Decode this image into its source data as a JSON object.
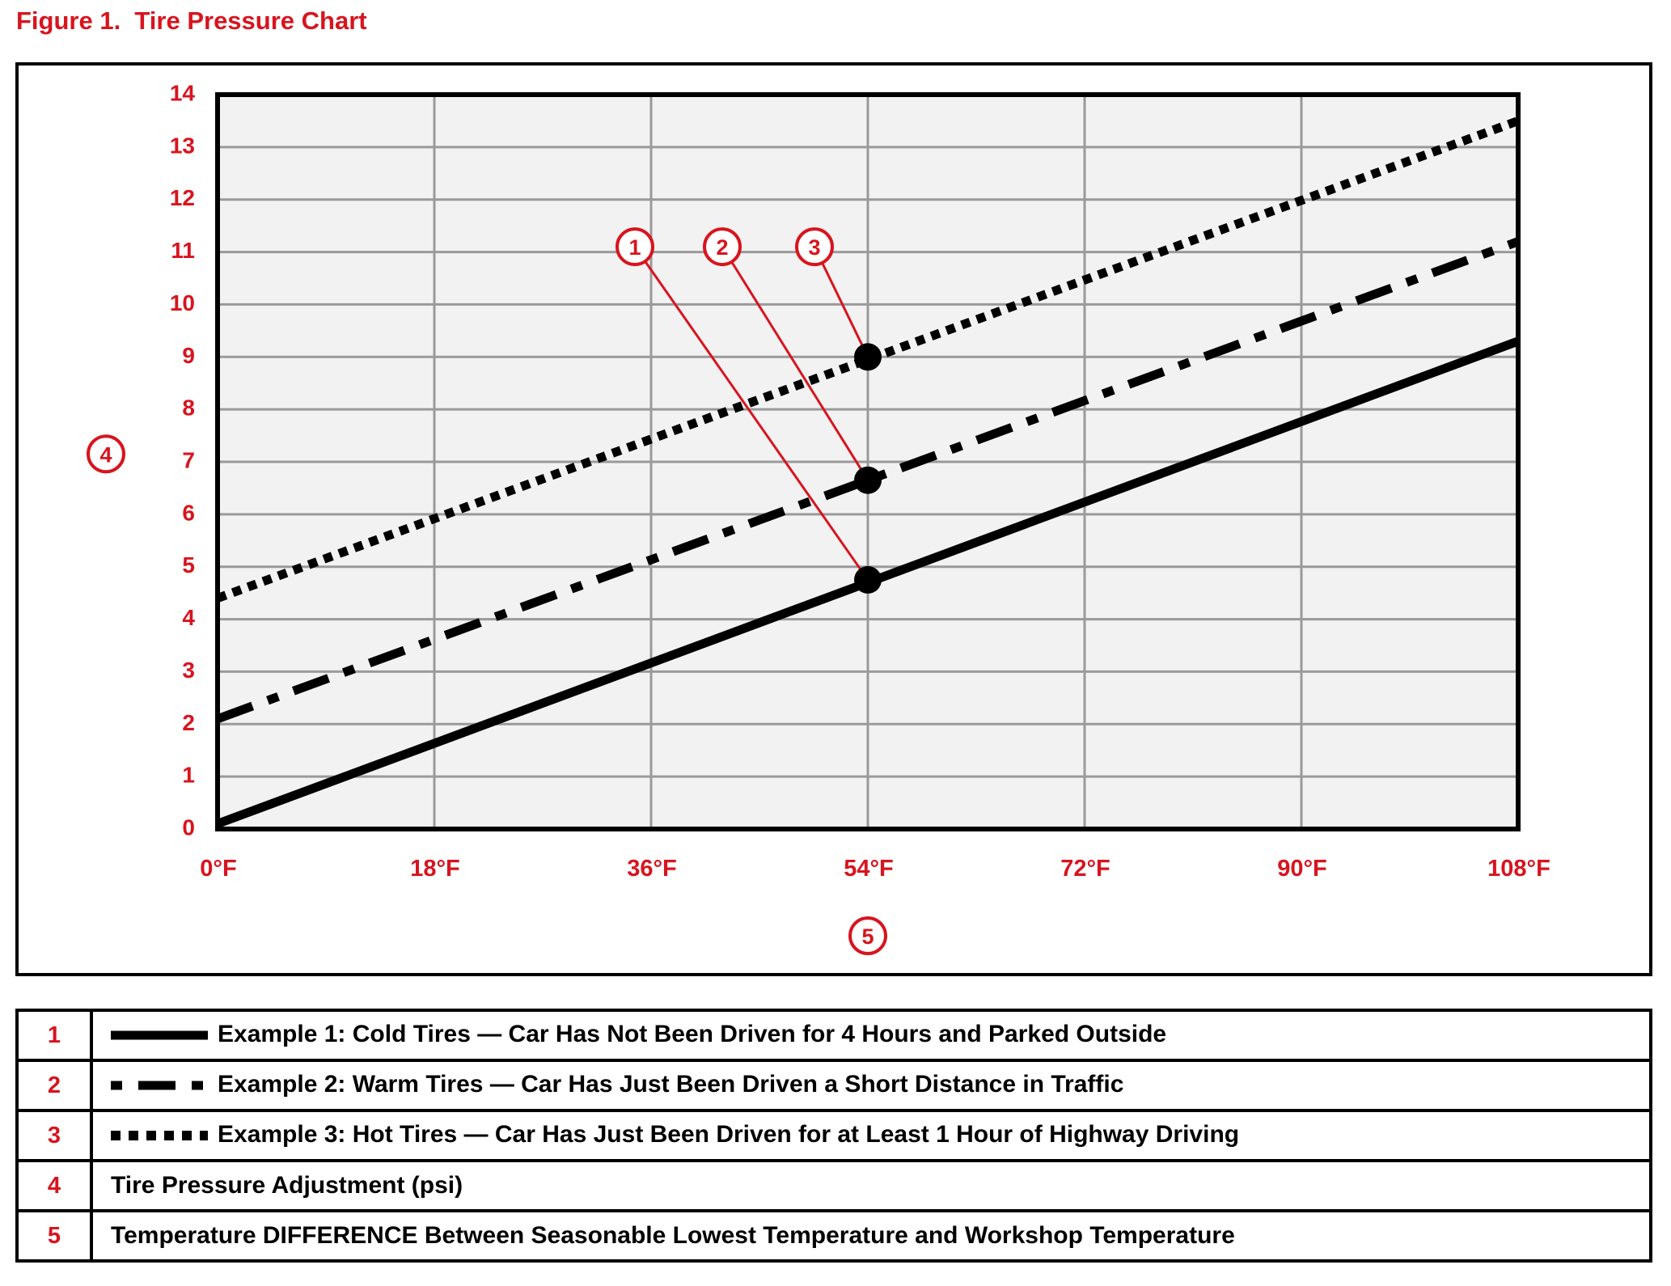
{
  "figure_title": "Figure 1.  Tire Pressure Chart",
  "colors": {
    "accent": "#d8141e",
    "line": "#000000",
    "plot_bg": "#f2f2f2",
    "grid": "#9a9a9a"
  },
  "chart_data": {
    "type": "line",
    "title": "Tire Pressure Chart",
    "x": [
      0,
      18,
      36,
      54,
      72,
      90,
      108
    ],
    "x_tick_labels": [
      "0°F",
      "18°F",
      "36°F",
      "54°F",
      "72°F",
      "90°F",
      "108°F"
    ],
    "y_tick_labels": [
      "0",
      "1",
      "2",
      "3",
      "4",
      "5",
      "6",
      "7",
      "8",
      "9",
      "10",
      "11",
      "12",
      "13",
      "14"
    ],
    "xlim": [
      0,
      108
    ],
    "ylim": [
      0,
      14
    ],
    "grid": true,
    "x_axis_callout": "5",
    "y_axis_callout": "4",
    "series": [
      {
        "callout": "1",
        "style": "solid",
        "x": [
          0,
          108
        ],
        "y": [
          0.1,
          9.3
        ]
      },
      {
        "callout": "2",
        "style": "dashed",
        "x": [
          0,
          108
        ],
        "y": [
          2.1,
          11.2
        ]
      },
      {
        "callout": "3",
        "style": "dotted",
        "x": [
          0,
          108
        ],
        "y": [
          4.4,
          13.5
        ]
      }
    ],
    "markers": [
      {
        "series": "1",
        "x": 54,
        "y": 4.75
      },
      {
        "series": "2",
        "x": 54,
        "y": 6.65
      },
      {
        "series": "3",
        "x": 54,
        "y": 9.0
      }
    ]
  },
  "legend": [
    {
      "number": "1",
      "style": "solid",
      "text": "Example 1:  Cold Tires — Car Has Not Been Driven for 4 Hours and Parked Outside"
    },
    {
      "number": "2",
      "style": "dashed",
      "text": "Example 2:  Warm Tires — Car Has Just Been Driven a Short Distance in Traffic"
    },
    {
      "number": "3",
      "style": "dotted",
      "text": "Example 3:  Hot Tires — Car Has Just Been Driven for at Least 1 Hour of Highway Driving"
    },
    {
      "number": "4",
      "style": "",
      "text": "Tire Pressure Adjustment (psi)"
    },
    {
      "number": "5",
      "style": "",
      "text": "Temperature DIFFERENCE Between Seasonable Lowest Temperature and Workshop Temperature"
    }
  ]
}
